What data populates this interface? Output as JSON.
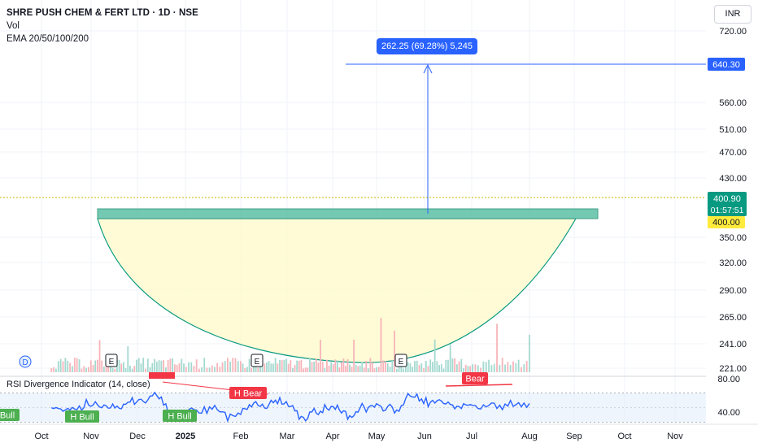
{
  "header": {
    "title": "SHRE PUSH CHEM & FERT LTD · 1D · NSE",
    "vol_label": "Vol",
    "ema_label": "EMA 20/50/100/200",
    "currency": "INR"
  },
  "measure_tooltip": "262.25 (69.28%) 5,245",
  "price_axis": {
    "ticks": [
      "720.00",
      "560.00",
      "510.00",
      "470.00",
      "430.00",
      "350.00",
      "320.00",
      "290.00",
      "265.00",
      "241.00",
      "221.00"
    ],
    "labels": {
      "target": "640.30",
      "last_price": "400.90",
      "countdown": "01:57:51",
      "level": "400.00"
    },
    "colors": {
      "target": "#2962ff",
      "last_price": "#089981",
      "level": "#ffeb3b"
    }
  },
  "rsi": {
    "title": "RSI Divergence Indicator (14, close)",
    "ticks": [
      "80.00",
      "40.00"
    ],
    "labels": {
      "bull_left": "Bull",
      "h_bull_1": "H Bull",
      "h_bull_2": "H Bull",
      "h_bear": "H Bear",
      "bear": "Bear"
    }
  },
  "time_axis": [
    "Oct",
    "Nov",
    "Dec",
    "2025",
    "Feb",
    "Mar",
    "Apr",
    "May",
    "Jun",
    "Jul",
    "Aug",
    "Sep",
    "Oct",
    "Nov"
  ],
  "markers": {
    "dividend": "D",
    "earnings": "E"
  },
  "colors": {
    "up": "#089981",
    "down": "#f23645",
    "ema20": "#f23645",
    "ema50": "#ff9800",
    "ema100": "#4dd0e1",
    "ema200": "#7e57c2",
    "rsi_line": "#2962ff",
    "cup_fill": "#fff9c4",
    "resistance": "#5cc0a6"
  },
  "chart_data": {
    "type": "candlestick",
    "title": "SHRE PUSH CHEM & FERT LTD · 1D · NSE",
    "xlabel": "",
    "ylabel": "",
    "y_scale": "log",
    "ylim": [
      221,
      720
    ],
    "x_range": [
      "Sep 2024",
      "Nov 2025"
    ],
    "close_series": {
      "dates": [
        "Sep 2024",
        "Oct 2024",
        "Nov 2024",
        "Dec 2024",
        "2025",
        "Feb 2025",
        "Mar 2025",
        "Apr 2025",
        "May 2025",
        "Jun 2025",
        "Jul 2025",
        "Aug 2025"
      ],
      "values": [
        250,
        245,
        260,
        378,
        340,
        270,
        350,
        250,
        235,
        330,
        340,
        400.9
      ]
    },
    "last_price": 400.9,
    "resistance_level": 400.0,
    "target_price": 640.3,
    "measure": {
      "change": 262.25,
      "change_percent": 69.28,
      "bars": 5245
    },
    "rsi_ylim": [
      20,
      90
    ],
    "rsi_levels": [
      70,
      30
    ]
  }
}
